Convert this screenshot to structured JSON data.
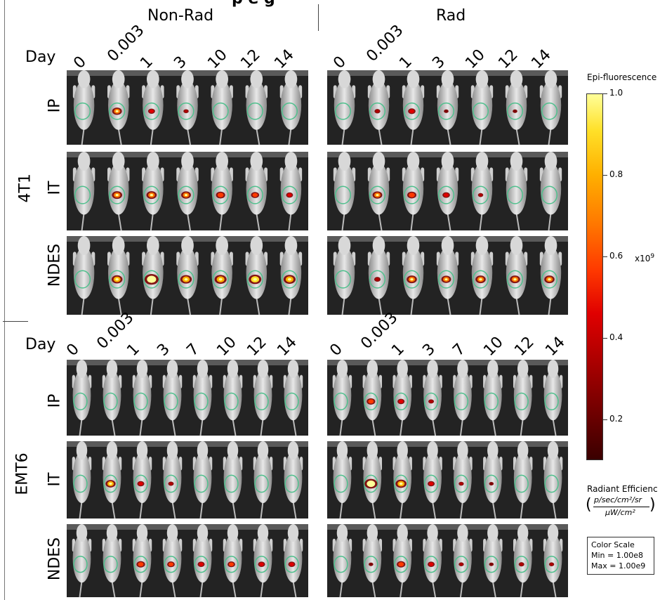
{
  "headers": {
    "left": "Non-Rad",
    "right": "Rad",
    "clipped_title": "p      e       g"
  },
  "section_4t1": {
    "cell_line": "4T1",
    "day_label": "Day",
    "days_left": [
      "0",
      "0.003",
      "1",
      "3",
      "10",
      "12",
      "14"
    ],
    "days_right": [
      "0",
      "0.003",
      "1",
      "3",
      "10",
      "12",
      "14"
    ],
    "routes": [
      "IP",
      "IT",
      "NDES"
    ]
  },
  "section_emt6": {
    "cell_line": "EMT6",
    "day_label": "Day",
    "days_left": [
      "0",
      "0.003",
      "1",
      "3",
      "7",
      "10",
      "12",
      "14"
    ],
    "days_right": [
      "0",
      "0.003",
      "1",
      "3",
      "7",
      "10",
      "12",
      "14"
    ],
    "routes": [
      "IP",
      "IT",
      "NDES"
    ]
  },
  "colorbar": {
    "title": "Epi-fluorescence",
    "ticks": [
      "1.0",
      "0.8",
      "0.6",
      "0.4",
      "0.2"
    ],
    "tick_values": [
      1.0,
      0.8,
      0.6,
      0.4,
      0.2
    ],
    "range": [
      0.1,
      1.0
    ],
    "multiplier": "x10",
    "exponent": "9",
    "colors": [
      "#ffff99",
      "#ffe028",
      "#ffb000",
      "#ff7a00",
      "#ff3a00",
      "#e00000",
      "#b00000",
      "#7d0000",
      "#3a0000"
    ]
  },
  "units": {
    "label": "Radiant Efficienc",
    "numerator": "p/sec/cm²/sr",
    "denominator": "μW/cm²",
    "open_paren": "(",
    "close_paren": ")"
  },
  "color_scale": {
    "title": "Color Scale",
    "min": "Min = 1.00e8",
    "max": "Max = 1.00e9"
  },
  "signal_levels": {
    "4t1_nonrad_ip": [
      0,
      0.5,
      0.25,
      0.1,
      0,
      0,
      0
    ],
    "4t1_nonrad_it": [
      0,
      0.55,
      0.55,
      0.5,
      0.45,
      0.35,
      0.25
    ],
    "4t1_nonrad_ndes": [
      0,
      0.6,
      0.9,
      0.65,
      0.7,
      0.75,
      0.7
    ],
    "4t1_rad_ip": [
      0,
      0.15,
      0.3,
      0.05,
      0,
      0.05,
      0
    ],
    "4t1_rad_it": [
      0,
      0.5,
      0.45,
      0.3,
      0.1,
      0,
      0
    ],
    "4t1_rad_ndes": [
      0,
      0.2,
      0.55,
      0.5,
      0.55,
      0.55,
      0.55
    ],
    "emt6_nonrad_ip": [
      0,
      0,
      0,
      0,
      0,
      0,
      0,
      0
    ],
    "emt6_nonrad_it": [
      0,
      0.6,
      0.3,
      0.15,
      0,
      0,
      0,
      0
    ],
    "emt6_nonrad_ndes": [
      0,
      0,
      0.45,
      0.35,
      0.3,
      0.35,
      0.3,
      0.3
    ],
    "emt6_rad_ip": [
      0,
      0.45,
      0.3,
      0.15,
      0,
      0,
      0,
      0
    ],
    "emt6_rad_it": [
      0,
      0.9,
      0.7,
      0.3,
      0.1,
      0.05,
      0,
      0
    ],
    "emt6_rad_ndes": [
      0,
      0.05,
      0.45,
      0.3,
      0.1,
      0.05,
      0.15,
      0.1
    ]
  }
}
